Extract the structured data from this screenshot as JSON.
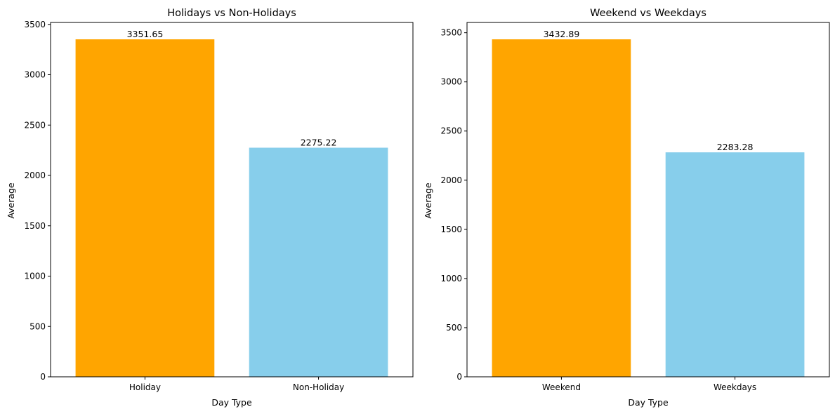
{
  "chart_data": [
    {
      "type": "bar",
      "title": "Holidays vs Non-Holidays",
      "xlabel": "Day Type",
      "ylabel": "Average",
      "categories": [
        "Holiday",
        "Non-Holiday"
      ],
      "values": [
        3351.65,
        2275.22
      ],
      "value_labels": [
        "3351.65",
        "2275.22"
      ],
      "colors": [
        "#FFA500",
        "#87CEEB"
      ],
      "ylim": [
        0,
        3519.23
      ],
      "yticks": [
        0,
        500,
        1000,
        1500,
        2000,
        2500,
        3000,
        3500
      ],
      "ytick_labels": [
        "0",
        "500",
        "1000",
        "1500",
        "2000",
        "2500",
        "3000",
        "3500"
      ],
      "grid": false,
      "legend": "none"
    },
    {
      "type": "bar",
      "title": "Weekend vs Weekdays",
      "xlabel": "Day Type",
      "ylabel": "Average",
      "categories": [
        "Weekend",
        "Weekdays"
      ],
      "values": [
        3432.89,
        2283.28
      ],
      "value_labels": [
        "3432.89",
        "2283.28"
      ],
      "colors": [
        "#FFA500",
        "#87CEEB"
      ],
      "ylim": [
        0,
        3604.53
      ],
      "yticks": [
        0,
        500,
        1000,
        1500,
        2000,
        2500,
        3000,
        3500
      ],
      "ytick_labels": [
        "0",
        "500",
        "1000",
        "1500",
        "2000",
        "2500",
        "3000",
        "3500"
      ],
      "grid": false,
      "legend": "none"
    }
  ]
}
